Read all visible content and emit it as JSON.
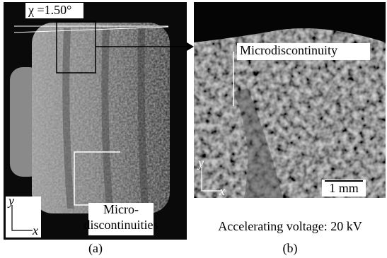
{
  "panel_a": {
    "angle_label": "χ =1.50°",
    "annotation": [
      "Micro-",
      "discontinuities"
    ],
    "axis_y": "y",
    "axis_x": "x",
    "caption": "(a)"
  },
  "panel_b": {
    "annotation": "Microdiscontinuity",
    "scale_bar": "1 mm",
    "axis_y": "y",
    "axis_x": "x",
    "note": "Accelerating voltage: 20 kV",
    "caption": "(b)"
  }
}
